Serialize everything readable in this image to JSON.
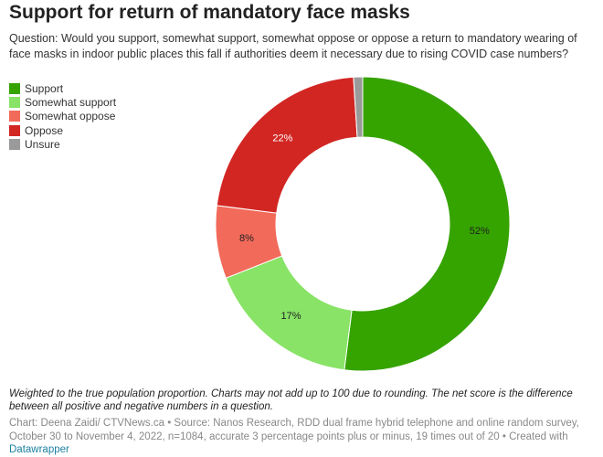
{
  "chart_data": {
    "type": "pie",
    "title": "Support for return of mandatory face masks",
    "subtitle": "Question: Would you support, somewhat support, somewhat oppose or oppose a return to mandatory wearing of face masks in indoor public places this fall if authorities deem it necessary due to rising COVID case numbers?",
    "categories": [
      "Support",
      "Somewhat support",
      "Somewhat oppose",
      "Oppose",
      "Unsure"
    ],
    "values": [
      52,
      17,
      8,
      22,
      1
    ],
    "value_labels": [
      "52%",
      "17%",
      "8%",
      "22%",
      null
    ],
    "colors": [
      "#35a300",
      "#88e366",
      "#f26a5a",
      "#d22623",
      "#9a9a9a"
    ],
    "legend": "top-left",
    "note": "Weighted to the true population proportion. Charts may not add up to 100 due to rounding. The net score is the difference between all positive and negative numbers in a question.",
    "source": "Chart: Deena Zaidi/ CTVNews.ca • Source: Nanos Research, RDD dual frame hybrid telephone and online random survey, October 30 to November 4, 2022, n=1084, accurate 3 percentage points plus or minus, 19 times out of 20 • Created with",
    "credit": "Datawrapper"
  }
}
